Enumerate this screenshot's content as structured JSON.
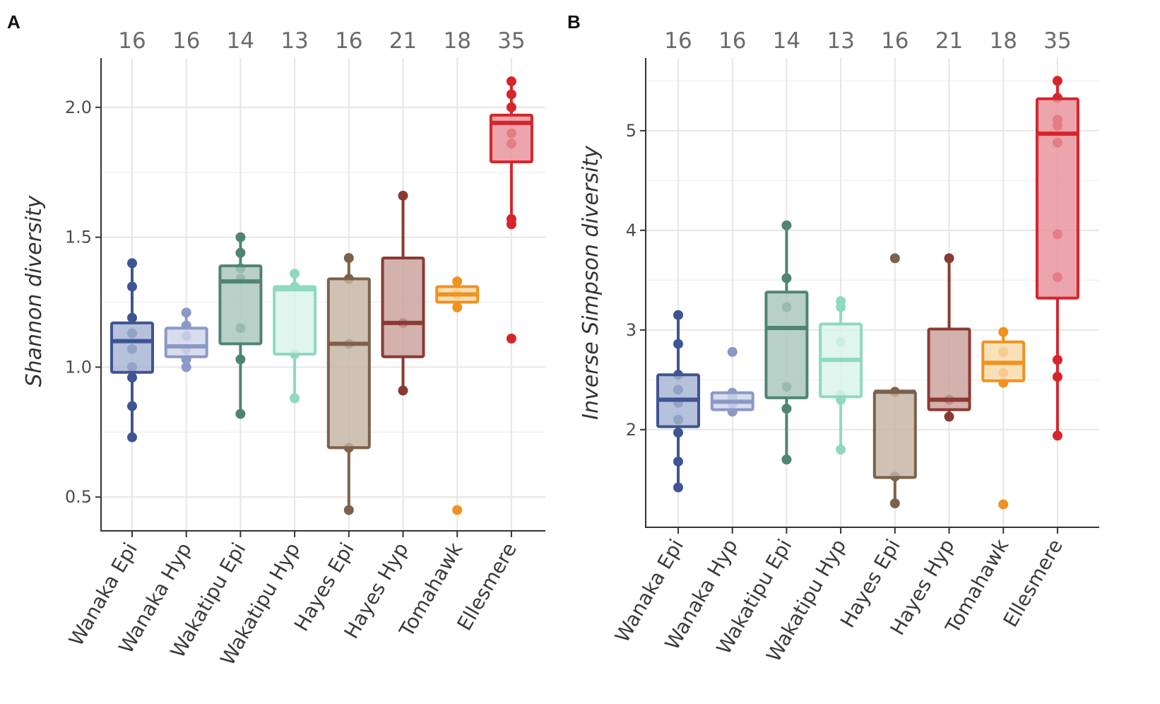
{
  "chart_data": [
    {
      "panel": "A",
      "type": "box",
      "title": "",
      "xlabel": "",
      "ylabel": "Shannon diversity",
      "ylim": [
        0.37,
        2.19
      ],
      "yticks": [
        "0.5",
        "1.0",
        "1.5",
        "2.0"
      ],
      "grid": true,
      "categories": [
        "Wanaka Epi",
        "Wanaka Hyp",
        "Wakatipu Epi",
        "Wakatipu Hyp",
        "Hayes Epi",
        "Hayes Hyp",
        "Tomahawk",
        "Ellesmere"
      ],
      "counts": [
        "16",
        "16",
        "14",
        "13",
        "16",
        "21",
        "18",
        "35"
      ],
      "colors": [
        "#3e5493",
        "#8a99c6",
        "#4f8474",
        "#8fd8c1",
        "#7d614b",
        "#8b3a32",
        "#f0921f",
        "#d6252b"
      ],
      "fills": [
        "#a6b3d3",
        "#d0d6ea",
        "#a9c6bd",
        "#d8f3ea",
        "#c4b4a5",
        "#c9a09a",
        "#f6d9a9",
        "#e8919a"
      ],
      "boxes": [
        {
          "min": 0.73,
          "q1": 0.98,
          "median": 1.1,
          "q3": 1.17,
          "max": 1.4,
          "points": [
            0.73,
            0.85,
            0.96,
            1.0,
            1.07,
            1.13,
            1.19,
            1.31,
            1.4
          ]
        },
        {
          "min": 1.0,
          "q1": 1.04,
          "median": 1.08,
          "q3": 1.15,
          "max": 1.21,
          "points": [
            1.0,
            1.03,
            1.07,
            1.12,
            1.16,
            1.21
          ]
        },
        {
          "min": 0.82,
          "q1": 1.09,
          "median": 1.33,
          "q3": 1.39,
          "max": 1.5,
          "points": [
            0.82,
            1.03,
            1.15,
            1.34,
            1.38,
            1.44,
            1.5
          ]
        },
        {
          "min": 0.88,
          "q1": 1.05,
          "median": 1.3,
          "q3": 1.31,
          "max": 1.36,
          "points": [
            0.88,
            1.05,
            1.31,
            1.36
          ]
        },
        {
          "min": 0.45,
          "q1": 0.69,
          "median": 1.09,
          "q3": 1.34,
          "max": 1.42,
          "points": [
            0.45,
            0.69,
            1.09,
            1.34,
            1.42
          ]
        },
        {
          "min": 0.91,
          "q1": 1.04,
          "median": 1.17,
          "q3": 1.42,
          "max": 1.66,
          "points": [
            0.91,
            1.17,
            1.66
          ]
        },
        {
          "min": 1.23,
          "q1": 1.25,
          "median": 1.28,
          "q3": 1.31,
          "max": 1.33,
          "points": [
            1.23,
            1.28,
            1.33
          ]
        },
        {
          "min": 1.56,
          "q1": 1.79,
          "median": 1.94,
          "q3": 1.97,
          "max": 2.1,
          "points": [
            1.11,
            1.55,
            1.57,
            1.86,
            1.9,
            2.0,
            2.05,
            2.1
          ]
        }
      ],
      "outliers": [
        [],
        [],
        [],
        [],
        [],
        [],
        [
          0.45
        ],
        []
      ]
    },
    {
      "panel": "B",
      "type": "box",
      "title": "",
      "xlabel": "",
      "ylabel": "Inverse Simpson diversity",
      "ylim": [
        1.02,
        5.73
      ],
      "yticks": [
        "2",
        "3",
        "4",
        "5"
      ],
      "grid": true,
      "categories": [
        "Wanaka Epi",
        "Wanaka Hyp",
        "Wakatipu Epi",
        "Wakatipu Hyp",
        "Hayes Epi",
        "Hayes Hyp",
        "Tomahawk",
        "Ellesmere"
      ],
      "counts": [
        "16",
        "16",
        "14",
        "13",
        "16",
        "21",
        "18",
        "35"
      ],
      "colors": [
        "#3e5493",
        "#8a99c6",
        "#4f8474",
        "#8fd8c1",
        "#7d614b",
        "#8b3a32",
        "#f0921f",
        "#d6252b"
      ],
      "fills": [
        "#a6b3d3",
        "#d0d6ea",
        "#a9c6bd",
        "#d8f3ea",
        "#c4b4a5",
        "#c9a09a",
        "#f6d9a9",
        "#e8919a"
      ],
      "boxes": [
        {
          "min": 1.42,
          "q1": 2.03,
          "median": 2.3,
          "q3": 2.55,
          "max": 3.15,
          "points": [
            1.42,
            1.68,
            1.97,
            2.1,
            2.27,
            2.4,
            2.55,
            2.86,
            3.15
          ]
        },
        {
          "min": 2.18,
          "q1": 2.2,
          "median": 2.28,
          "q3": 2.37,
          "max": 2.37,
          "points": [
            2.18,
            2.26,
            2.32,
            2.37,
            2.78
          ]
        },
        {
          "min": 1.7,
          "q1": 2.32,
          "median": 3.02,
          "q3": 3.38,
          "max": 4.05,
          "points": [
            1.7,
            2.21,
            2.43,
            3.23,
            3.52,
            4.05
          ]
        },
        {
          "min": 1.8,
          "q1": 2.33,
          "median": 2.7,
          "q3": 3.06,
          "max": 3.29,
          "points": [
            1.8,
            2.3,
            2.35,
            2.88,
            3.23,
            3.29
          ]
        },
        {
          "min": 1.26,
          "q1": 1.52,
          "median": 2.38,
          "q3": 2.38,
          "max": 2.38,
          "points": [
            1.26,
            1.53,
            2.38
          ]
        },
        {
          "min": 2.13,
          "q1": 2.2,
          "median": 2.3,
          "q3": 3.01,
          "max": 3.72,
          "points": [
            2.13,
            2.3,
            3.72
          ]
        },
        {
          "min": 2.47,
          "q1": 2.49,
          "median": 2.67,
          "q3": 2.88,
          "max": 2.98,
          "points": [
            2.47,
            2.57,
            2.78,
            2.98
          ]
        },
        {
          "min": 1.94,
          "q1": 3.32,
          "median": 4.97,
          "q3": 5.32,
          "max": 5.5,
          "points": [
            1.94,
            2.53,
            2.7,
            3.53,
            3.96,
            4.88,
            5.05,
            5.11,
            5.33,
            5.5
          ]
        }
      ],
      "outliers": [
        [],
        [],
        [],
        [],
        [
          3.72
        ],
        [],
        [
          1.25
        ],
        []
      ]
    }
  ]
}
